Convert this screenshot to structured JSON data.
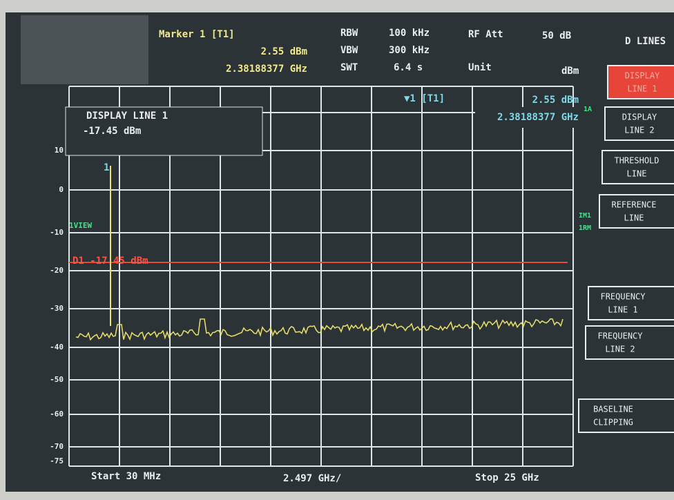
{
  "header": {
    "marker_title": "Marker 1 [T1]",
    "marker_level": "2.55 dBm",
    "marker_freq": "2.38188377 GHz",
    "rbw_label": "RBW",
    "rbw": "100 kHz",
    "vbw_label": "VBW",
    "vbw": "300 kHz",
    "swt_label": "SWT",
    "swt": "6.4 s",
    "rf_att_label": "RF Att",
    "rf_att": "50 dB",
    "unit_label": "Unit",
    "unit": "dBm",
    "menu_title": "D LINES"
  },
  "marker_box": {
    "name": "▼1 [T1]",
    "level": "2.55 dBm",
    "freq": "2.38188377 GHz"
  },
  "line_box": {
    "title": "DISPLAY LINE 1",
    "value": "-17.45 dBm"
  },
  "display_line_label": "D1 -17.45 dBm",
  "marker_number": "1",
  "view_label": "1VIEW",
  "side_labels": [
    "1A",
    "IM1",
    "1RM"
  ],
  "y_labels": [
    "10",
    "0",
    "-10",
    "-20",
    "-30",
    "-40",
    "-50",
    "-60",
    "-70",
    "-75"
  ],
  "footer": {
    "start": "Start 30 MHz",
    "span": "2.497 GHz/",
    "stop": "Stop 25 GHz"
  },
  "softkeys": [
    [
      "DISPLAY",
      "LINE 1"
    ],
    [
      "DISPLAY",
      "LINE 2"
    ],
    [
      "THRESHOLD",
      "LINE"
    ],
    [
      "REFERENCE",
      "LINE"
    ],
    [
      "FREQUENCY",
      "LINE 1"
    ],
    [
      "FREQUENCY",
      "LINE 2"
    ],
    [
      "BASELINE",
      "CLIPPING"
    ]
  ]
}
